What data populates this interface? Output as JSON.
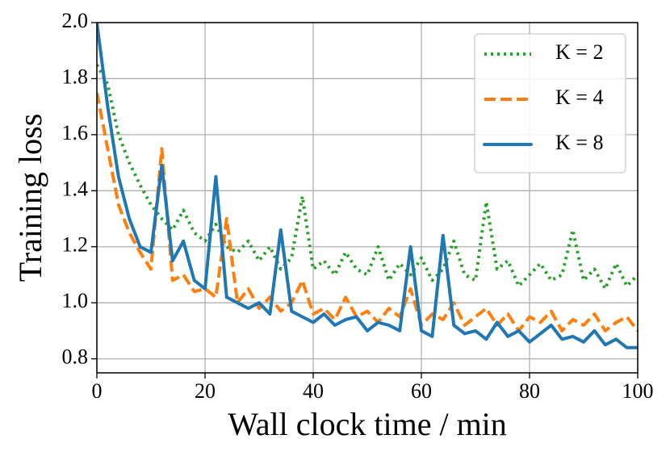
{
  "chart_data": {
    "type": "line",
    "xlabel": "Wall clock time / min",
    "ylabel": "Training loss",
    "x": [
      0,
      2,
      4,
      6,
      8,
      10,
      12,
      14,
      16,
      18,
      20,
      22,
      24,
      26,
      28,
      30,
      32,
      34,
      36,
      38,
      40,
      42,
      44,
      46,
      48,
      50,
      52,
      54,
      56,
      58,
      60,
      62,
      64,
      66,
      68,
      70,
      72,
      74,
      76,
      78,
      80,
      82,
      84,
      86,
      88,
      90,
      92,
      94,
      96,
      98,
      100
    ],
    "series": [
      {
        "name": "K = 2",
        "color": "#2ca02c",
        "linestyle": "dotted",
        "values": [
          1.85,
          1.78,
          1.6,
          1.5,
          1.42,
          1.35,
          1.3,
          1.26,
          1.33,
          1.25,
          1.22,
          1.28,
          1.2,
          1.18,
          1.22,
          1.15,
          1.2,
          1.12,
          1.16,
          1.38,
          1.12,
          1.15,
          1.1,
          1.18,
          1.12,
          1.1,
          1.2,
          1.08,
          1.14,
          1.1,
          1.16,
          1.08,
          1.12,
          1.22,
          1.1,
          1.08,
          1.36,
          1.12,
          1.15,
          1.06,
          1.1,
          1.14,
          1.08,
          1.1,
          1.26,
          1.08,
          1.12,
          1.05,
          1.14,
          1.06,
          1.1
        ]
      },
      {
        "name": "K = 4",
        "color": "#ff7f0e",
        "linestyle": "dashed",
        "values": [
          1.75,
          1.55,
          1.35,
          1.25,
          1.18,
          1.12,
          1.55,
          1.08,
          1.1,
          1.04,
          1.05,
          1.02,
          1.3,
          1.0,
          1.05,
          0.98,
          1.02,
          0.97,
          1.0,
          1.08,
          0.96,
          0.98,
          0.94,
          1.02,
          0.95,
          0.97,
          0.93,
          0.98,
          0.95,
          1.05,
          0.92,
          0.96,
          0.94,
          1.0,
          0.92,
          0.95,
          0.98,
          0.92,
          0.96,
          0.9,
          0.95,
          0.93,
          0.97,
          0.9,
          0.94,
          0.92,
          0.96,
          0.9,
          0.93,
          0.95,
          0.9
        ]
      },
      {
        "name": "K = 8",
        "color": "#1f77b4",
        "linestyle": "solid",
        "values": [
          2.0,
          1.7,
          1.45,
          1.3,
          1.2,
          1.18,
          1.49,
          1.15,
          1.22,
          1.08,
          1.05,
          1.45,
          1.02,
          1.0,
          0.98,
          1.0,
          0.96,
          1.26,
          0.97,
          0.95,
          0.93,
          0.96,
          0.92,
          0.94,
          0.95,
          0.9,
          0.93,
          0.92,
          0.9,
          1.2,
          0.9,
          0.88,
          1.24,
          0.92,
          0.89,
          0.9,
          0.87,
          0.93,
          0.88,
          0.9,
          0.86,
          0.89,
          0.92,
          0.87,
          0.88,
          0.86,
          0.9,
          0.85,
          0.87,
          0.84,
          0.84
        ]
      }
    ],
    "xlim": [
      0,
      100
    ],
    "xticks": [
      0,
      20,
      40,
      60,
      80,
      100
    ],
    "ylim": [
      0.75,
      2.0
    ],
    "yticks": [
      0.8,
      {
        "value": 1.0,
        "label": "1.0"
      },
      1.2,
      1.4,
      1.6,
      1.8,
      {
        "value": 2.0,
        "label": "2.0"
      }
    ],
    "grid": true,
    "legend": "upper right"
  }
}
